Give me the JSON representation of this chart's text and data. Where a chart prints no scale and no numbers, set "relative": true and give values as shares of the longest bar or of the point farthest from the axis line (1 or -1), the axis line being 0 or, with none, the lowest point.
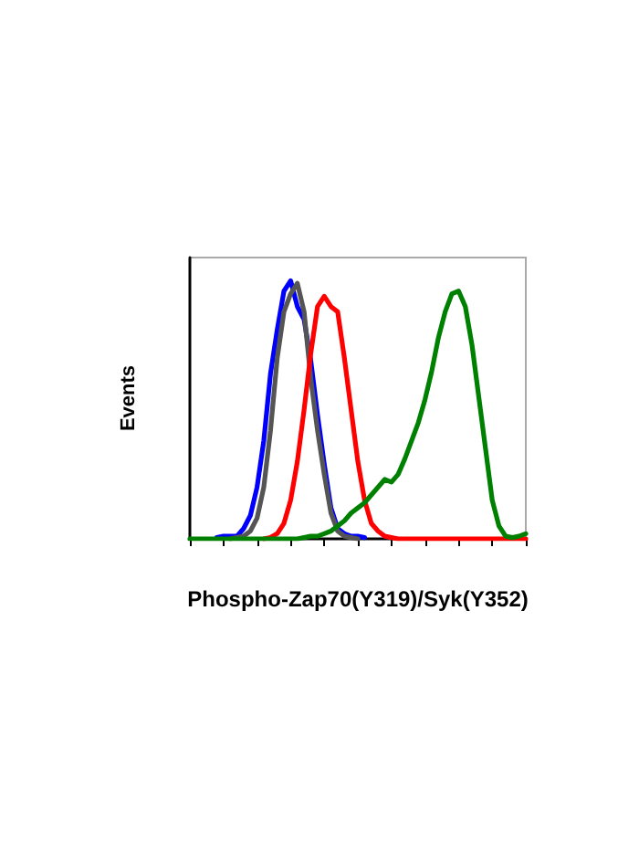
{
  "chart_data": {
    "type": "line",
    "relative": true,
    "xlabel": "Phospho-Zap70(Y319)/Syk(Y352)",
    "ylabel": "Events",
    "marker": "none",
    "line_style": "solid",
    "categories": [
      null,
      null,
      null,
      null,
      null,
      null,
      null,
      null,
      null,
      null,
      null,
      null,
      null,
      null,
      null,
      null,
      null,
      null,
      null,
      null,
      null,
      null,
      null,
      null,
      null,
      null,
      null,
      null,
      null,
      null,
      null,
      null,
      null,
      null,
      null,
      null,
      null,
      null,
      null,
      null,
      null,
      null,
      null,
      null,
      null,
      null,
      null,
      null,
      null,
      null,
      null
    ],
    "series": [
      {
        "color": "#0000ff",
        "values": [
          null,
          null,
          null,
          null,
          0.005,
          0.01,
          0.01,
          0.01,
          0.04,
          0.09,
          0.2,
          0.38,
          0.64,
          0.81,
          0.96,
          1.0,
          0.9,
          0.85,
          0.69,
          0.48,
          0.29,
          0.12,
          0.04,
          0.02,
          0.01,
          0.01,
          0.005,
          null,
          null,
          null,
          null,
          null,
          null,
          null,
          null,
          null,
          null,
          null,
          null,
          null,
          null,
          null,
          null,
          null,
          null,
          null,
          null,
          null,
          null,
          null,
          null
        ]
      },
      {
        "color": "#555555",
        "values": [
          null,
          null,
          null,
          null,
          null,
          null,
          0,
          0.005,
          0.01,
          0.03,
          0.08,
          0.2,
          0.42,
          0.7,
          0.88,
          0.95,
          0.99,
          0.88,
          0.62,
          0.42,
          0.25,
          0.1,
          0.03,
          0.01,
          0.005,
          0,
          null,
          null,
          null,
          null,
          null,
          null,
          null,
          null,
          null,
          null,
          null,
          null,
          null,
          null,
          null,
          null,
          null,
          null,
          null,
          null,
          null,
          null,
          null,
          null,
          null
        ]
      },
      {
        "color": "#ff0000",
        "values": [
          null,
          null,
          null,
          null,
          null,
          null,
          null,
          null,
          null,
          null,
          null,
          0,
          0.005,
          0.02,
          0.06,
          0.15,
          0.3,
          0.5,
          0.72,
          0.9,
          0.94,
          0.9,
          0.88,
          0.7,
          0.5,
          0.3,
          0.15,
          0.06,
          0.03,
          0.01,
          0.005,
          0,
          0,
          0,
          0,
          0,
          0,
          0,
          0,
          0,
          0,
          0,
          0,
          0,
          0,
          0,
          0,
          0,
          0,
          0,
          0
        ]
      },
      {
        "color": "#008000",
        "values": [
          0,
          0,
          0,
          0,
          0,
          0,
          0,
          0,
          0,
          0,
          0,
          0,
          0,
          0,
          0,
          0,
          0,
          0.005,
          0.01,
          0.01,
          0.02,
          0.03,
          0.05,
          0.07,
          0.1,
          0.12,
          0.14,
          0.17,
          0.2,
          0.23,
          0.22,
          0.25,
          0.31,
          0.38,
          0.45,
          0.54,
          0.65,
          0.78,
          0.88,
          0.95,
          0.96,
          0.9,
          0.75,
          0.55,
          0.35,
          0.15,
          0.05,
          0.01,
          0.005,
          0.01,
          0.02
        ]
      }
    ]
  }
}
